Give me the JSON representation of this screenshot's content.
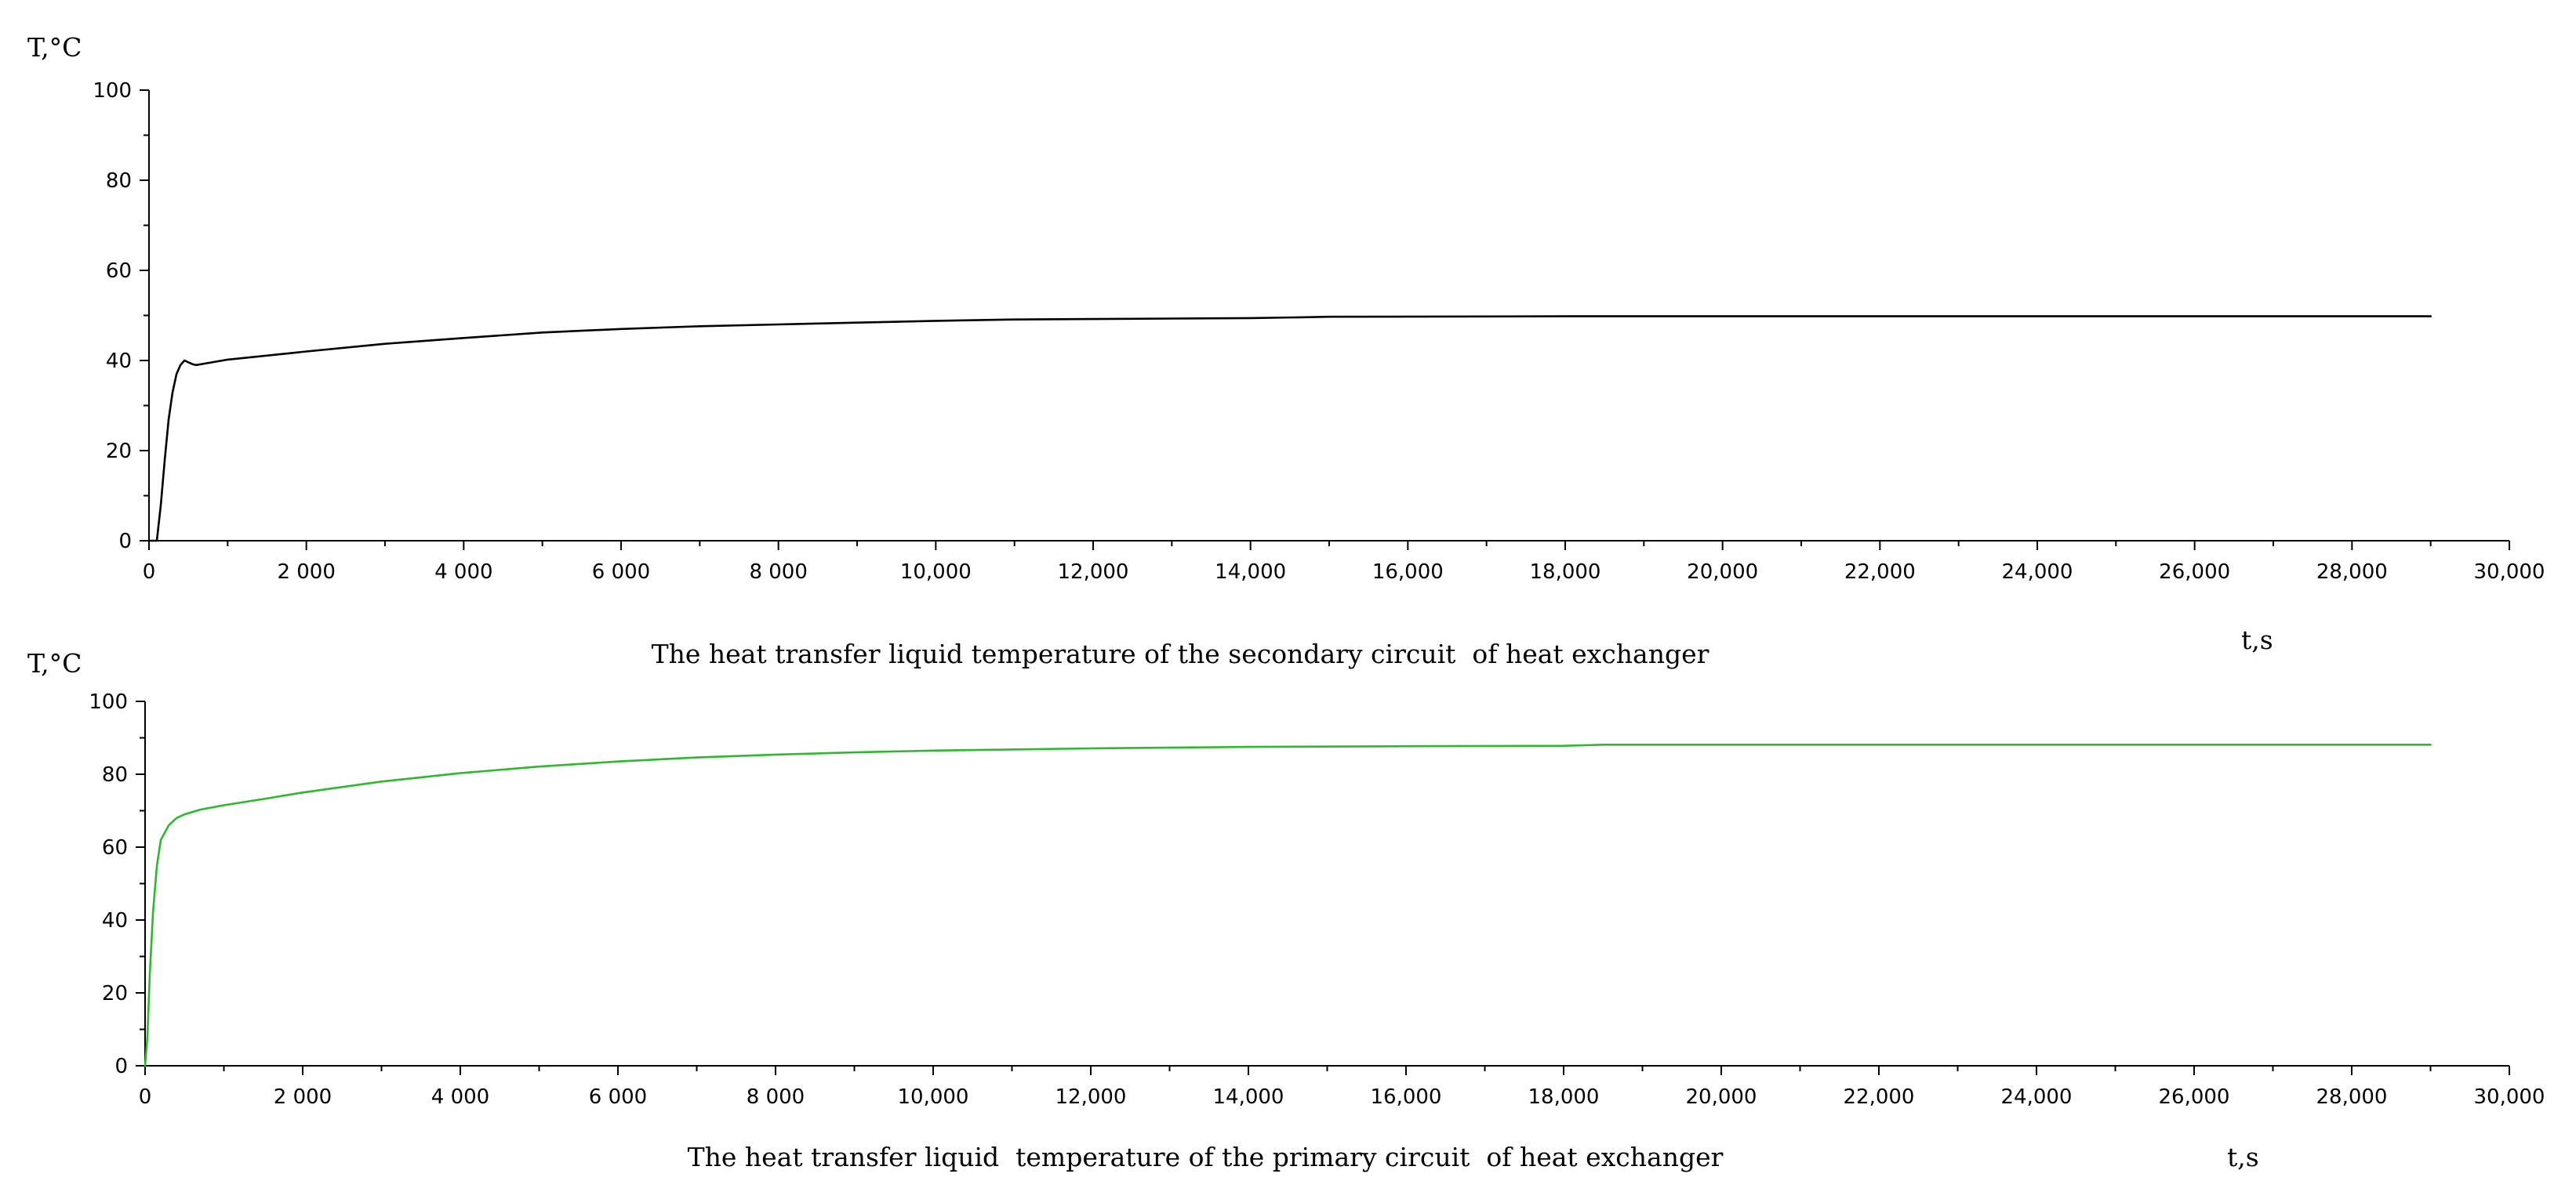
{
  "chart_data": [
    {
      "type": "line",
      "title": "",
      "caption": "The heat transfer liquid temperature of the secondary circuit  of heat exchanger",
      "ylabel": "T,°C",
      "xlabel": "t,s",
      "xlim": [
        0,
        30000
      ],
      "ylim": [
        0,
        100
      ],
      "grid": false,
      "x_ticks": [
        0,
        2000,
        4000,
        6000,
        8000,
        10000,
        12000,
        14000,
        16000,
        18000,
        20000,
        22000,
        24000,
        26000,
        28000,
        30000
      ],
      "x_tick_labels": [
        "0",
        "2 000",
        "4 000",
        "6 000",
        "8 000",
        "10,000",
        "12,000",
        "14,000",
        "16,000",
        "18,000",
        "20,000",
        "22,000",
        "24,000",
        "26,000",
        "28,000",
        "30,000"
      ],
      "y_ticks": [
        0,
        20,
        40,
        60,
        80,
        100
      ],
      "y_tick_labels": [
        "0",
        "20",
        "40",
        "60",
        "80",
        "100"
      ],
      "series": [
        {
          "color": "#000000",
          "x": [
            0,
            100,
            150,
            200,
            250,
            300,
            350,
            400,
            450,
            500,
            550,
            600,
            1000,
            2000,
            3000,
            4000,
            5000,
            6000,
            7000,
            8000,
            9000,
            10000,
            11000,
            12000,
            13000,
            14000,
            14700,
            15000,
            18000,
            20000,
            22000,
            24000,
            26000,
            28000,
            29000
          ],
          "y": [
            0,
            0,
            8,
            18,
            27,
            33,
            37,
            39,
            40,
            39.6,
            39.2,
            39,
            40.2,
            42,
            43.7,
            45,
            46.2,
            47,
            47.6,
            48,
            48.4,
            48.8,
            49.1,
            49.2,
            49.3,
            49.4,
            49.6,
            49.7,
            49.8,
            49.8,
            49.8,
            49.8,
            49.8,
            49.8,
            49.8
          ]
        }
      ]
    },
    {
      "type": "line",
      "title": "",
      "caption": "The heat transfer liquid  temperature of the primary circuit  of heat exchanger",
      "ylabel": "T,°C",
      "xlabel": "t,s",
      "xlim": [
        0,
        30000
      ],
      "ylim": [
        0,
        100
      ],
      "grid": false,
      "x_ticks": [
        0,
        2000,
        4000,
        6000,
        8000,
        10000,
        12000,
        14000,
        16000,
        18000,
        20000,
        22000,
        24000,
        26000,
        28000,
        30000
      ],
      "x_tick_labels": [
        "0",
        "2 000",
        "4 000",
        "6 000",
        "8 000",
        "10,000",
        "12,000",
        "14,000",
        "16,000",
        "18,000",
        "20,000",
        "22,000",
        "24,000",
        "26,000",
        "28,000",
        "30,000"
      ],
      "y_ticks": [
        0,
        20,
        40,
        60,
        80,
        100
      ],
      "y_tick_labels": [
        "0",
        "20",
        "40",
        "60",
        "80",
        "100"
      ],
      "series": [
        {
          "color": "#2db82d",
          "x": [
            0,
            30,
            60,
            100,
            150,
            200,
            300,
            400,
            500,
            700,
            1000,
            1500,
            2000,
            3000,
            4000,
            5000,
            6000,
            7000,
            8000,
            9000,
            10000,
            12000,
            14000,
            16000,
            18000,
            18500,
            20000,
            22000,
            24000,
            26000,
            28000,
            29000
          ],
          "y": [
            0,
            8,
            25,
            42,
            55,
            62,
            66,
            68,
            69,
            70.3,
            71.5,
            73.2,
            75,
            78,
            80.3,
            82.1,
            83.5,
            84.6,
            85.4,
            86,
            86.5,
            87.1,
            87.5,
            87.7,
            87.8,
            88.1,
            88.1,
            88.1,
            88.1,
            88.1,
            88.1,
            88.1
          ]
        }
      ]
    }
  ]
}
